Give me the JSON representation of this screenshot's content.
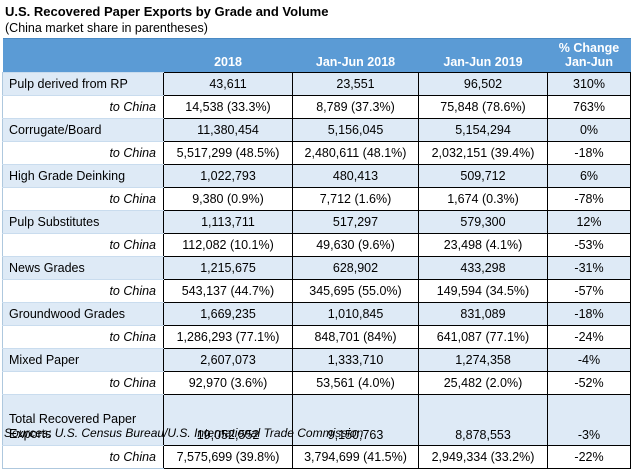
{
  "title": "U.S. Recovered Paper Exports by Grade and Volume",
  "subtitle": "(China market share in parentheses)",
  "source": "Sources: U.S. Census Bureau/U.S. International Trade Commission",
  "colors": {
    "header_bg": "#5b9bd5",
    "header_text": "#ffffff",
    "grade_row_bg": "#deeaf6",
    "china_row_bg": "#ffffff",
    "data_border": "#000000",
    "label_border": "#aec8de"
  },
  "chart_data": {
    "type": "table",
    "title": "U.S. Recovered Paper Exports by Grade and Volume",
    "subtitle": "(China market share in parentheses)",
    "columns": [
      "",
      "2018",
      "Jan-Jun 2018",
      "Jan-Jun 2019",
      "% Change\nJan-Jun"
    ],
    "rows": [
      {
        "label": "Pulp derived from RP",
        "y2018": "43,611",
        "jj2018": "23,551",
        "jj2019": "96,502",
        "change": "310%"
      },
      {
        "label": "to China",
        "y2018": "14,538 (33.3%)",
        "jj2018": "8,789 (37.3%)",
        "jj2019": "75,848 (78.6%)",
        "change": "763%"
      },
      {
        "label": "Corrugate/Board",
        "y2018": "11,380,454",
        "jj2018": "5,156,045",
        "jj2019": "5,154,294",
        "change": "0%"
      },
      {
        "label": "to China",
        "y2018": "5,517,299 (48.5%)",
        "jj2018": "2,480,611 (48.1%)",
        "jj2019": "2,032,151 (39.4%)",
        "change": "-18%"
      },
      {
        "label": "High Grade Deinking",
        "y2018": "1,022,793",
        "jj2018": "480,413",
        "jj2019": "509,712",
        "change": "6%"
      },
      {
        "label": "to China",
        "y2018": "9,380 (0.9%)",
        "jj2018": "7,712 (1.6%)",
        "jj2019": "1,674 (0.3%)",
        "change": "-78%"
      },
      {
        "label": "Pulp Substitutes",
        "y2018": "1,113,711",
        "jj2018": "517,297",
        "jj2019": "579,300",
        "change": "12%"
      },
      {
        "label": "to China",
        "y2018": "112,082 (10.1%)",
        "jj2018": "49,630 (9.6%)",
        "jj2019": "23,498 (4.1%)",
        "change": "-53%"
      },
      {
        "label": "News Grades",
        "y2018": "1,215,675",
        "jj2018": "628,902",
        "jj2019": "433,298",
        "change": "-31%"
      },
      {
        "label": "to China",
        "y2018": "543,137 (44.7%)",
        "jj2018": "345,695 (55.0%)",
        "jj2019": "149,594 (34.5%)",
        "change": "-57%"
      },
      {
        "label": "Groundwood Grades",
        "y2018": "1,669,235",
        "jj2018": "1,010,845",
        "jj2019": "831,089",
        "change": "-18%"
      },
      {
        "label": "to China",
        "y2018": "1,286,293 (77.1%)",
        "jj2018": "848,701 (84%)",
        "jj2019": "641,087 (77.1%)",
        "change": "-24%"
      },
      {
        "label": "Mixed Paper",
        "y2018": "2,607,073",
        "jj2018": "1,333,710",
        "jj2019": "1,274,358",
        "change": "-4%"
      },
      {
        "label": "to China",
        "y2018": "92,970 (3.6%)",
        "jj2018": "53,561 (4.0%)",
        "jj2019": "25,482 (2.0%)",
        "change": "-52%"
      },
      {
        "label": "Total Recovered Paper Exports",
        "y2018": "19,052,552",
        "jj2018": "9,150,763",
        "jj2019": "8,878,553",
        "change": "-3%"
      },
      {
        "label": "to China",
        "y2018": "7,575,699 (39.8%)",
        "jj2018": "3,794,699 (41.5%)",
        "jj2019": "2,949,334 (33.2%)",
        "change": "-22%"
      }
    ]
  }
}
